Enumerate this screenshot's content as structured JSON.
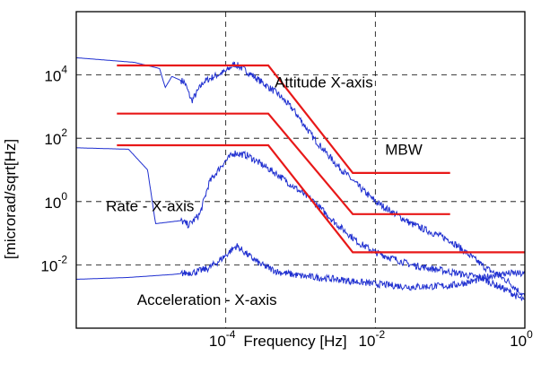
{
  "chart_data": {
    "type": "line",
    "title": "",
    "xlabel": "Frequency [Hz]",
    "ylabel": "[microrad/sqrt[Hz]",
    "x_scale": "log",
    "y_scale": "log",
    "xlim": [
      1e-06,
      1
    ],
    "ylim": [
      0.0001,
      1000000
    ],
    "grid": true,
    "grid_style": "dashed",
    "x_ticks": [
      {
        "value": 0.0001,
        "base": "10",
        "exp": "-4"
      },
      {
        "value": 0.01,
        "base": "10",
        "exp": "-2"
      },
      {
        "value": 1,
        "base": "10",
        "exp": "0"
      }
    ],
    "y_ticks": [
      {
        "value": 0.01,
        "base": "10",
        "exp": "-2"
      },
      {
        "value": 1,
        "base": "10",
        "exp": "0"
      },
      {
        "value": 100,
        "base": "10",
        "exp": "2"
      },
      {
        "value": 10000,
        "base": "10",
        "exp": "4"
      }
    ],
    "colors": {
      "measured": "#1f2fd0",
      "requirement": "#e81818"
    },
    "annotations": [
      {
        "text": "Attitude X-axis",
        "x": 0.00045,
        "y": 4000
      },
      {
        "text": "MBW",
        "x": 0.0135,
        "y": 30
      },
      {
        "text": "Rate - X-axis",
        "x": 2.5e-06,
        "y": 0.5
      },
      {
        "text": "Acceleration - X-axis",
        "x": 6.5e-06,
        "y": 0.00055
      }
    ],
    "series": [
      {
        "kind": "requirement",
        "points": [
          [
            3.5e-06,
            20000
          ],
          [
            0.00037,
            20000
          ],
          [
            0.005,
            8
          ],
          [
            0.1,
            8
          ]
        ]
      },
      {
        "kind": "requirement",
        "points": [
          [
            3.5e-06,
            600
          ],
          [
            0.00037,
            600
          ],
          [
            0.005,
            0.4
          ],
          [
            0.1,
            0.4
          ]
        ]
      },
      {
        "kind": "requirement",
        "points": [
          [
            3.5e-06,
            60
          ],
          [
            0.00037,
            60
          ],
          [
            0.005,
            0.025
          ],
          [
            1,
            0.025
          ]
        ]
      },
      {
        "kind": "measured",
        "points": [
          [
            1e-06,
            35000
          ],
          [
            6e-06,
            25000
          ],
          [
            1.3e-05,
            16000
          ],
          [
            1.55e-05,
            4000
          ],
          [
            1.9e-05,
            9000
          ],
          [
            2.8e-05,
            6000
          ],
          [
            3.5e-05,
            1500
          ],
          [
            5e-05,
            6000
          ],
          [
            7e-05,
            9000
          ],
          [
            0.0001,
            13000
          ],
          [
            0.00013,
            22000
          ],
          [
            0.00015,
            19000
          ],
          [
            0.0002,
            12000
          ],
          [
            0.0003,
            6000
          ],
          [
            0.0005,
            2500
          ],
          [
            0.0008,
            800
          ],
          [
            0.0015,
            100
          ],
          [
            0.003,
            15
          ],
          [
            0.006,
            3
          ],
          [
            0.01,
            1
          ],
          [
            0.03,
            0.2
          ],
          [
            0.1,
            0.06
          ],
          [
            0.3,
            0.008
          ],
          [
            0.6,
            0.003
          ],
          [
            1,
            0.001
          ]
        ]
      },
      {
        "kind": "measured",
        "points": [
          [
            1e-06,
            50
          ],
          [
            5e-06,
            45
          ],
          [
            9e-06,
            10
          ],
          [
            1.15e-05,
            0.2
          ],
          [
            2.5e-05,
            0.25
          ],
          [
            3.2e-05,
            0.18
          ],
          [
            4.5e-05,
            0.4
          ],
          [
            6e-05,
            4
          ],
          [
            9e-05,
            15
          ],
          [
            0.00013,
            35
          ],
          [
            0.0002,
            28
          ],
          [
            0.0003,
            15
          ],
          [
            0.0005,
            7
          ],
          [
            0.0008,
            3
          ],
          [
            0.0015,
            1
          ],
          [
            0.003,
            0.2
          ],
          [
            0.006,
            0.05
          ],
          [
            0.01,
            0.025
          ],
          [
            0.03,
            0.01
          ],
          [
            0.1,
            0.006
          ],
          [
            0.25,
            0.004
          ],
          [
            0.6,
            0.0015
          ],
          [
            1,
            0.0007
          ]
        ]
      },
      {
        "kind": "measured",
        "points": [
          [
            1e-06,
            0.0035
          ],
          [
            5e-06,
            0.004
          ],
          [
            2e-05,
            0.005
          ],
          [
            4e-05,
            0.006
          ],
          [
            6e-05,
            0.008
          ],
          [
            8e-05,
            0.013
          ],
          [
            0.0001,
            0.02
          ],
          [
            0.00012,
            0.03
          ],
          [
            0.00014,
            0.04
          ],
          [
            0.0002,
            0.02
          ],
          [
            0.0003,
            0.01
          ],
          [
            0.0005,
            0.006
          ],
          [
            0.001,
            0.0045
          ],
          [
            0.003,
            0.0035
          ],
          [
            0.01,
            0.0025
          ],
          [
            0.03,
            0.002
          ],
          [
            0.1,
            0.0022
          ],
          [
            0.2,
            0.003
          ],
          [
            0.4,
            0.005
          ],
          [
            0.7,
            0.0055
          ],
          [
            1,
            0.005
          ]
        ]
      }
    ]
  }
}
